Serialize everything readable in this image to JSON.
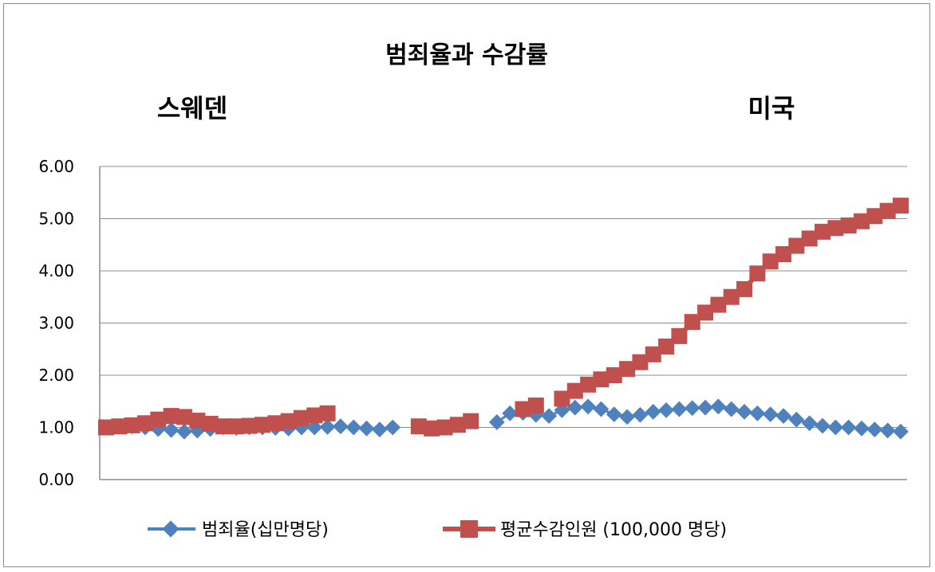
{
  "chart_data": {
    "type": "line",
    "title": "범죄율과 수감률",
    "annotations": [
      "스웨덴",
      "미국"
    ],
    "ylim": [
      0,
      6
    ],
    "yticks": [
      "0.00",
      "1.00",
      "2.00",
      "3.00",
      "4.00",
      "5.00",
      "6.00"
    ],
    "grid": true,
    "legend_position": "bottom",
    "x": [
      1,
      2,
      3,
      4,
      5,
      6,
      7,
      8,
      9,
      10,
      11,
      12,
      13,
      14,
      15,
      16,
      17,
      18,
      19,
      20,
      21,
      22,
      23,
      24,
      25,
      26,
      27,
      28,
      29,
      30,
      31,
      32,
      33,
      34,
      35,
      36,
      37,
      38,
      39,
      40,
      41,
      42,
      43,
      44,
      45,
      46,
      47,
      48,
      49,
      50,
      51,
      52,
      53,
      54,
      55,
      56,
      57,
      58,
      59,
      60,
      61,
      62
    ],
    "series": [
      {
        "name": "범죄율(십만명당)",
        "color": "#4f81bd",
        "marker": "diamond",
        "values": [
          1.0,
          1.01,
          1.02,
          1.0,
          0.97,
          0.95,
          0.92,
          0.94,
          0.97,
          1.0,
          0.99,
          1.0,
          1.0,
          0.99,
          0.98,
          1.0,
          1.0,
          1.01,
          1.02,
          1.0,
          0.98,
          0.96,
          1.0,
          null,
          null,
          null,
          null,
          null,
          null,
          null,
          1.1,
          1.27,
          1.28,
          1.24,
          1.22,
          1.33,
          1.38,
          1.4,
          1.35,
          1.25,
          1.2,
          1.24,
          1.3,
          1.33,
          1.35,
          1.37,
          1.38,
          1.4,
          1.35,
          1.3,
          1.27,
          1.25,
          1.22,
          1.15,
          1.08,
          1.03,
          1.0,
          1.0,
          0.98,
          0.96,
          0.94,
          0.92
        ]
      },
      {
        "name": "평균수감인원 (100,000 명당)",
        "color": "#c0504d",
        "marker": "square",
        "values": [
          1.0,
          1.02,
          1.04,
          1.08,
          1.15,
          1.22,
          1.2,
          1.13,
          1.07,
          1.02,
          1.02,
          1.03,
          1.05,
          1.08,
          1.12,
          1.18,
          1.23,
          1.27,
          null,
          null,
          null,
          null,
          null,
          null,
          1.02,
          0.98,
          1.0,
          1.05,
          1.12,
          null,
          null,
          null,
          1.35,
          1.42,
          null,
          1.55,
          1.7,
          1.82,
          1.92,
          2.0,
          2.12,
          2.25,
          2.4,
          2.55,
          2.75,
          3.02,
          3.2,
          3.35,
          3.5,
          3.65,
          3.95,
          4.18,
          4.32,
          4.48,
          4.62,
          4.75,
          4.82,
          4.87,
          4.95,
          5.05,
          5.15,
          5.25
        ]
      }
    ]
  }
}
